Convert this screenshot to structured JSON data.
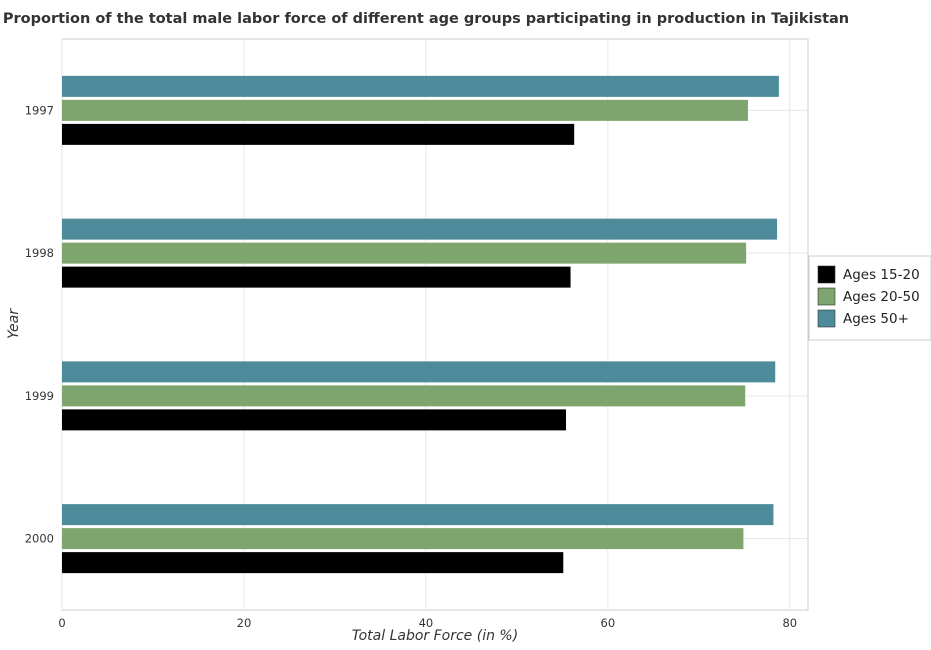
{
  "chart_data": {
    "type": "bar",
    "orientation": "horizontal",
    "title": "Proportion of the total male labor force of different age groups participating in production in Tajikistan",
    "xlabel": "Total Labor Force (in %)",
    "ylabel": "Year",
    "categories": [
      "1997",
      "1998",
      "1999",
      "2000"
    ],
    "series": [
      {
        "name": "Ages 15-20",
        "color": "#000000",
        "values": [
          56.3,
          55.9,
          55.4,
          55.1
        ]
      },
      {
        "name": "Ages 20-50",
        "color": "#7ea56d",
        "values": [
          75.4,
          75.2,
          75.1,
          74.9
        ]
      },
      {
        "name": "Ages 50+",
        "color": "#4d8b9a",
        "values": [
          78.8,
          78.6,
          78.4,
          78.2
        ]
      }
    ],
    "xlim": [
      0,
      82
    ],
    "xticks": [
      "0",
      "20",
      "40",
      "60",
      "80"
    ],
    "grid": true,
    "legend_position": "right"
  }
}
